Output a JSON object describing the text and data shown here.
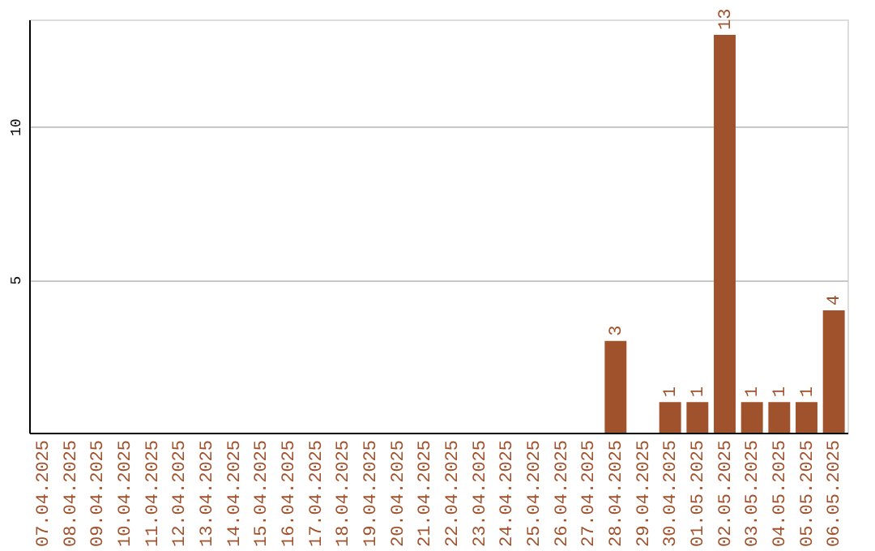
{
  "chart_data": {
    "type": "bar",
    "categories": [
      "07.04.2025",
      "08.04.2025",
      "09.04.2025",
      "10.04.2025",
      "11.04.2025",
      "12.04.2025",
      "13.04.2025",
      "14.04.2025",
      "15.04.2025",
      "16.04.2025",
      "17.04.2025",
      "18.04.2025",
      "19.04.2025",
      "20.04.2025",
      "21.04.2025",
      "22.04.2025",
      "23.04.2025",
      "24.04.2025",
      "25.04.2025",
      "26.04.2025",
      "27.04.2025",
      "28.04.2025",
      "29.04.2025",
      "30.04.2025",
      "01.05.2025",
      "02.05.2025",
      "03.05.2025",
      "04.05.2025",
      "05.05.2025",
      "06.05.2025"
    ],
    "values": [
      0,
      0,
      0,
      0,
      0,
      0,
      0,
      0,
      0,
      0,
      0,
      0,
      0,
      0,
      0,
      0,
      0,
      0,
      0,
      0,
      0,
      3,
      0,
      1,
      1,
      13,
      1,
      1,
      1,
      4
    ],
    "value_labels": [
      null,
      null,
      null,
      null,
      null,
      null,
      null,
      null,
      null,
      null,
      null,
      null,
      null,
      null,
      null,
      null,
      null,
      null,
      null,
      null,
      null,
      "3",
      null,
      "1",
      "1",
      "13",
      "1",
      "1",
      "1",
      "4"
    ],
    "color": "#a0522d",
    "ylim": [
      0,
      13.5
    ],
    "yticks": [
      5,
      10
    ],
    "grid": "y"
  }
}
